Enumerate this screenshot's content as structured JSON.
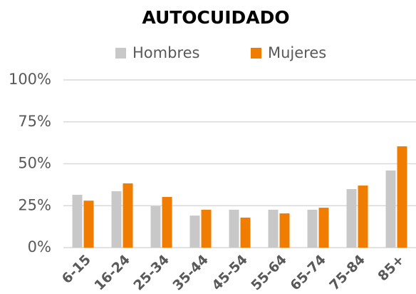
{
  "chart_data": {
    "type": "bar",
    "title": "AUTOCUIDADO",
    "categories": [
      "6-15",
      "16-24",
      "25-34",
      "35-44",
      "45-54",
      "55-64",
      "65-74",
      "75-84",
      "85+"
    ],
    "series": [
      {
        "name": "Hombres",
        "color": "#c8c8c8",
        "values": [
          31.5,
          33.6,
          24.7,
          19.1,
          22.6,
          22.6,
          22.6,
          34.9,
          46
        ]
      },
      {
        "name": "Mujeres",
        "color": "#f07d00",
        "values": [
          28,
          38.3,
          30.2,
          22.6,
          17.9,
          20.4,
          23.8,
          37,
          60.4
        ]
      }
    ],
    "ylim": [
      0,
      100
    ],
    "yticks": [
      {
        "value": 0,
        "label": "0%"
      },
      {
        "value": 25,
        "label": "25%"
      },
      {
        "value": 50,
        "label": "50%"
      },
      {
        "value": 75,
        "label": "75%"
      },
      {
        "value": 100,
        "label": "100%"
      }
    ],
    "grid": true,
    "legend": "top"
  }
}
